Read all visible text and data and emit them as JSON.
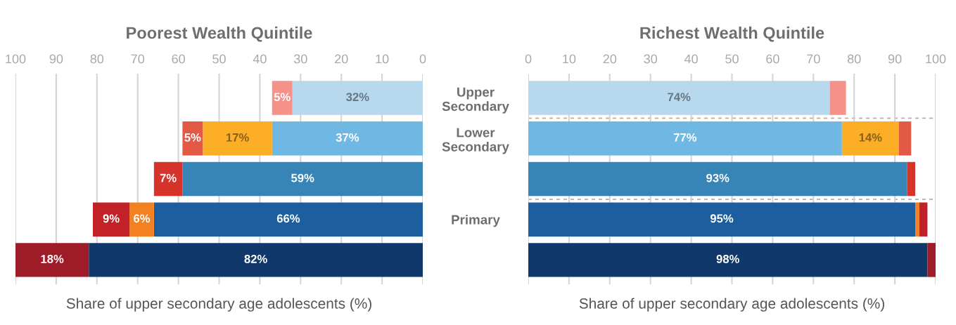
{
  "chart_data": [
    {
      "type": "bar",
      "orientation": "horizontal",
      "stacked": true,
      "title": "Poorest Wealth Quintile",
      "xlabel": "Share of upper secondary age adolescents (%)",
      "categories": [
        null,
        null,
        null,
        null,
        null
      ],
      "series": [
        {
          "colors": [
            "#b8d8ee",
            "#6fb8e3",
            "#3784b6",
            "#1d5f9e",
            "#10386a"
          ],
          "values": [
            32,
            37,
            59,
            66,
            82
          ],
          "value_labels": [
            "32%",
            "37%",
            "59%",
            "66%",
            "82%"
          ]
        },
        {
          "colors": [
            "#fbae26",
            "#fbae26",
            "#fbae26",
            "#f38121",
            "#f38121"
          ],
          "values": [
            null,
            17,
            null,
            6,
            null
          ],
          "value_labels": [
            null,
            "17%",
            null,
            "6%",
            null
          ]
        },
        {
          "colors": [
            "#f4928a",
            "#e25a46",
            "#d6332a",
            "#c22227",
            "#9e1c28"
          ],
          "values": [
            5,
            5,
            7,
            9,
            18
          ],
          "value_labels": [
            "5%",
            "5%",
            "7%",
            "9%",
            "18%"
          ]
        }
      ],
      "xlim": [
        100,
        0
      ],
      "xticks": [
        100,
        90,
        80,
        70,
        60,
        50,
        40,
        30,
        20,
        10,
        0
      ],
      "grid": "x"
    },
    {
      "type": "bar",
      "orientation": "horizontal",
      "stacked": true,
      "title": "Richest Wealth Quintile",
      "xlabel": "Share of upper secondary age adolescents (%)",
      "categories": [
        "Upper\nSecondary",
        "Lower\nSecondary",
        null,
        "Primary",
        null
      ],
      "series": [
        {
          "colors": [
            "#b8d8ee",
            "#6fb8e3",
            "#3784b6",
            "#1d5f9e",
            "#10386a"
          ],
          "values": [
            74,
            77,
            93,
            95,
            98
          ],
          "value_labels": [
            "74%",
            "77%",
            "93%",
            "95%",
            "98%"
          ]
        },
        {
          "colors": [
            "#fbae26",
            "#fbae26",
            "#fbae26",
            "#f38121",
            "#f38121"
          ],
          "values": [
            null,
            14,
            null,
            1,
            null
          ],
          "value_labels": [
            null,
            "14%",
            null,
            null,
            null
          ]
        },
        {
          "colors": [
            "#f4928a",
            "#e25a46",
            "#d6332a",
            "#c22227",
            "#9e1c28"
          ],
          "values": [
            4,
            3,
            2,
            2,
            2
          ],
          "value_labels": [
            null,
            null,
            null,
            null,
            null
          ]
        }
      ],
      "xlim": [
        0,
        100
      ],
      "xticks": [
        0,
        10,
        20,
        30,
        40,
        50,
        60,
        70,
        80,
        90,
        100
      ],
      "grid": "x"
    }
  ]
}
